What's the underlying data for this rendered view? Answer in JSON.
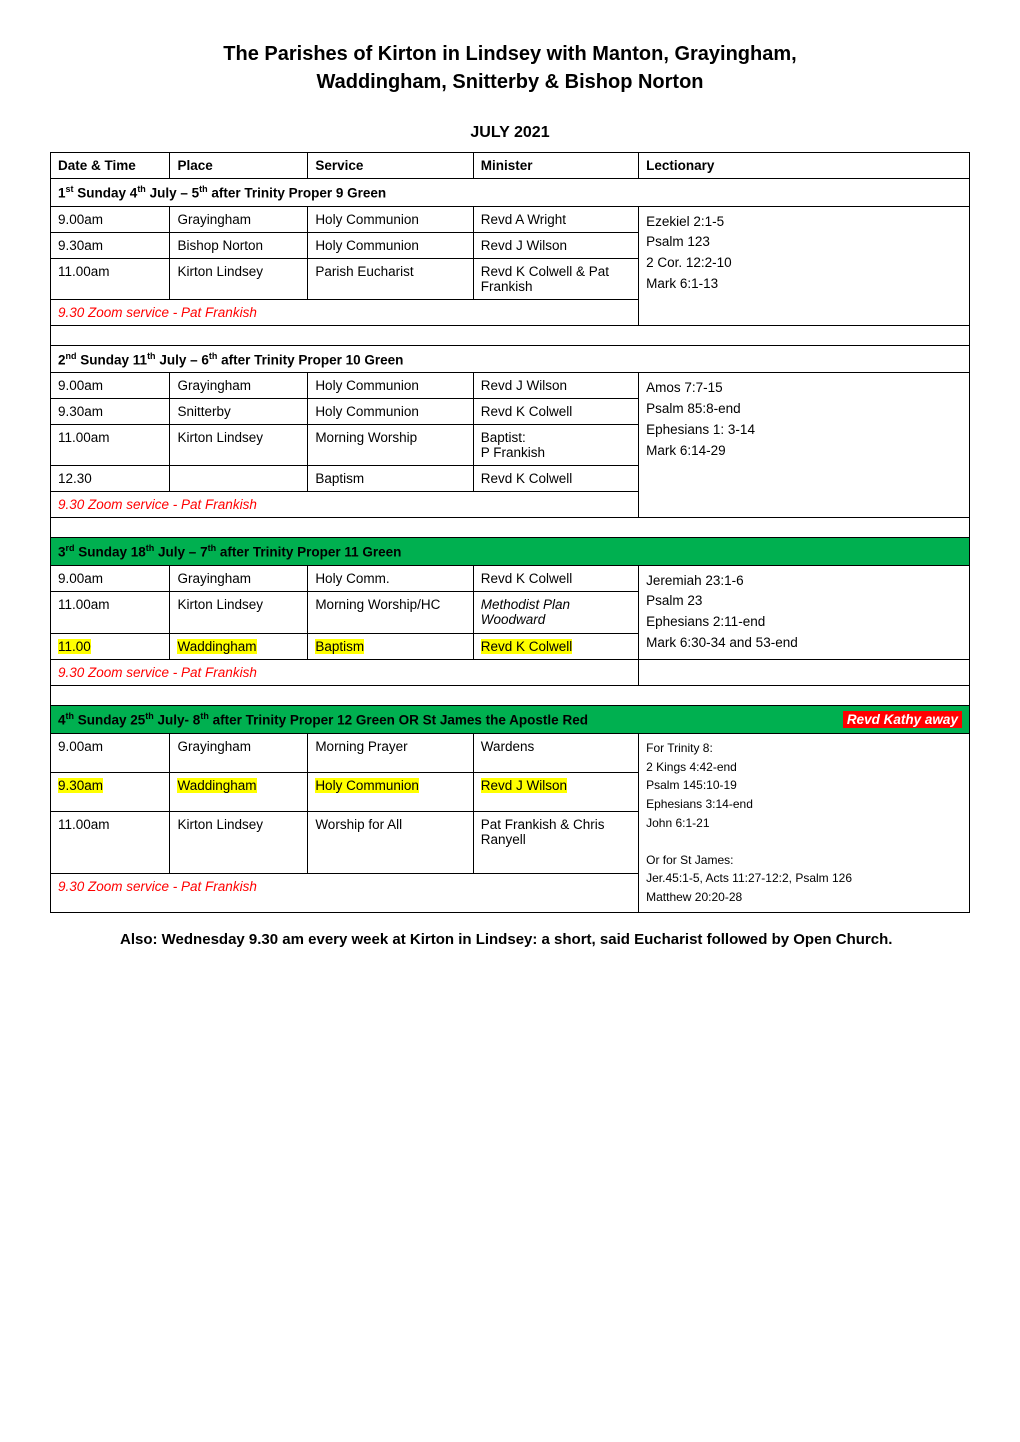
{
  "title_line1": "The Parishes of Kirton in Lindsey with Manton, Grayingham,",
  "title_line2": "Waddingham, Snitterby & Bishop Norton",
  "month": "JULY 2021",
  "headers": {
    "date": "Date & Time",
    "place": "Place",
    "service": "Service",
    "minister": "Minister",
    "lectionary": "Lectionary"
  },
  "sections": [
    {
      "header_html": "1<sup>st</sup> Sunday 4<sup>th</sup> July – 5<sup>th</sup> after Trinity  Proper 9   Green",
      "header_class": "section-header",
      "rows": [
        {
          "time": "9.00am",
          "place": "Grayingham",
          "service": "Holy Communion",
          "minister": "Revd A Wright",
          "lect_first": true
        },
        {
          "time": "9.30am",
          "place": "Bishop Norton",
          "service": "Holy Communion",
          "minister": "Revd J Wilson"
        },
        {
          "time": "11.00am",
          "place": "Kirton Lindsey",
          "service": "Parish Eucharist",
          "minister": "Revd K Colwell & Pat Frankish"
        }
      ],
      "lectionary": "Ezekiel 2:1-5<br>Psalm 123<br>2 Cor. 12:2-10<br>Mark 6:1-13",
      "zoom": "9.30 Zoom service - Pat Frankish"
    },
    {
      "header_html": "2<sup>nd</sup> Sunday 11<sup>th</sup> July – 6<sup>th</sup> after Trinity  Proper 10  Green",
      "header_class": "section-header",
      "rows": [
        {
          "time": "9.00am",
          "place": "Grayingham",
          "service": "Holy Communion",
          "minister": "Revd J Wilson",
          "lect_first": true
        },
        {
          "time": "9.30am",
          "place": "Snitterby",
          "service": "Holy Communion",
          "minister": "Revd K Colwell"
        },
        {
          "time": "11.00am",
          "place": "Kirton Lindsey",
          "service": "Morning Worship",
          "minister": "Baptist:<br>P Frankish"
        },
        {
          "time": "12.30",
          "place": "",
          "service": "Baptism",
          "minister": "Revd K Colwell"
        }
      ],
      "lectionary": "Amos 7:7-15<br>Psalm 85:8-end<br>Ephesians 1: 3-14<br>Mark 6:14-29",
      "zoom": "9.30 Zoom service - Pat Frankish"
    },
    {
      "header_html": "3<sup>rd</sup> Sunday 18<sup>th</sup> July – 7<sup>th</sup> after Trinity  Proper 11  Green",
      "header_class": "green-header",
      "rows": [
        {
          "time": "9.00am",
          "place": "Grayingham",
          "service": "Holy Comm.",
          "minister": "Revd K Colwell",
          "lect_first": true
        },
        {
          "time": "11.00am",
          "place": "Kirton Lindsey",
          "service": "Morning Worship/HC",
          "minister": "<span class='italic'>Methodist Plan<br>Woodward</span>"
        },
        {
          "time": "<span class='hl'>11.00</span>",
          "place": "<span class='hl'>Waddingham</span>",
          "service": "<span class='hl'>Baptism</span>",
          "minister": "<span class='hl'>Revd K Colwell</span>",
          "own_lect": ""
        }
      ],
      "lectionary": "Jeremiah 23:1-6<br>Psalm 23<br>Ephesians 2:11-end<br>Mark 6:30-34 and 53-end",
      "lect_rowspan": 2,
      "zoom": "9.30 Zoom service - Pat Frankish"
    },
    {
      "header_html": "4<sup>th</sup> Sunday 25<sup>th</sup> July- 8<sup>th</sup>  after Trinity  Proper 12 Green OR St James the Apostle Red",
      "header_class": "green-header",
      "header_extra": "Revd Kathy away",
      "rows": [
        {
          "time": "9.00am",
          "place": "Grayingham",
          "service": "Morning Prayer",
          "minister": "Wardens",
          "lect_first": true
        },
        {
          "time": "<span class='hl'>9.30am</span>",
          "place": "<span class='hl'>Waddingham</span>",
          "service": "<span class='hl'>Holy Communion</span>",
          "minister": "<span class='hl'>Revd J Wilson</span>"
        },
        {
          "time": "11.00am",
          "place": "Kirton Lindsey",
          "service": "Worship for All",
          "minister": "Pat Frankish & Chris Ranyell"
        }
      ],
      "lectionary": "For Trinity 8:<br>2 Kings 4:42-end<br>Psalm 145:10-19<br>Ephesians 3:14-end<br>John 6:1-21<br><br>Or for St James:<br>Jer.45:1-5, Acts 11:27-12:2, Psalm 126<br>Matthew 20:20-28",
      "lect_font": "small",
      "zoom": "9.30 Zoom service - Pat Frankish"
    }
  ],
  "footer": "Also: Wednesday 9.30 am every week at Kirton in Lindsey: a short, said Eucharist followed by Open Church."
}
